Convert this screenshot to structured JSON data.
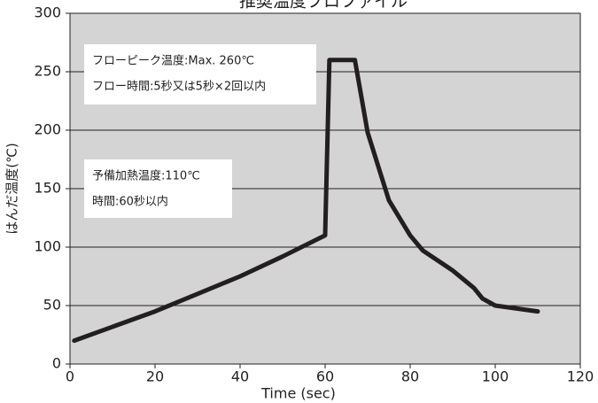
{
  "chart_data": {
    "type": "line",
    "title": "推奨温度プロファイル",
    "xlabel": "Time (sec)",
    "ylabel": "はんだ温度(℃)",
    "x": [
      1,
      20,
      30,
      40,
      50,
      60,
      61,
      67,
      70,
      75,
      80,
      83,
      90,
      95,
      97,
      100,
      110
    ],
    "values": [
      20,
      45,
      60,
      75,
      92,
      110,
      260,
      260,
      198,
      140,
      110,
      97,
      80,
      65,
      56,
      50,
      45
    ],
    "color": "#231f20",
    "xlim": [
      0,
      120
    ],
    "xticks": [
      0,
      20,
      40,
      60,
      80,
      100,
      120
    ],
    "ylim": [
      0,
      300
    ],
    "yticks": [
      0,
      50,
      100,
      150,
      200,
      250,
      300
    ],
    "grid": true,
    "annotations": [
      {
        "lines": [
          "フローピーク温度:Max. 260℃",
          "フロー時間:5秒又は5秒×2回以内"
        ]
      },
      {
        "lines": [
          "予備加熱温度:110℃",
          "時間:60秒以内"
        ]
      }
    ]
  }
}
